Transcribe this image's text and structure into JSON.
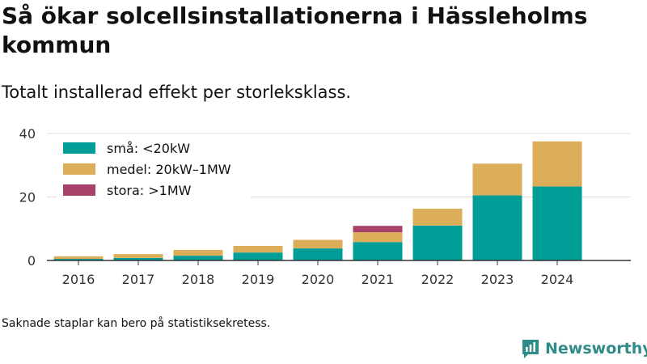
{
  "header": {
    "title": "Så ökar solcellsinstallationerna i Hässleholms kommun",
    "subtitle": "Totalt installerad effekt per storleksklass."
  },
  "footer": {
    "note": "Saknade staplar kan bero på statistiksekretess.",
    "brand": "Newsworthy"
  },
  "colors": {
    "small": "#009e96",
    "medium": "#dcae5a",
    "large": "#a8426b",
    "brand": "#2e8b87"
  },
  "chart_data": {
    "type": "bar",
    "stacked": true,
    "title": "Så ökar solcellsinstallationerna i Hässleholms kommun",
    "subtitle": "Totalt installerad effekt per storleksklass.",
    "xlabel": "",
    "ylabel": "",
    "categories": [
      "2016",
      "2017",
      "2018",
      "2019",
      "2020",
      "2021",
      "2022",
      "2023",
      "2024"
    ],
    "series": [
      {
        "name": "små: <20kW",
        "color": "#009e96",
        "values": [
          0.5,
          0.8,
          1.5,
          2.5,
          3.8,
          5.8,
          11.0,
          20.5,
          23.3
        ]
      },
      {
        "name": "medel: 20kW–1MW",
        "color": "#dcae5a",
        "values": [
          0.8,
          1.2,
          1.8,
          2.1,
          2.7,
          3.1,
          5.3,
          10.0,
          14.2
        ]
      },
      {
        "name": "stora: >1MW",
        "color": "#a8426b",
        "values": [
          0,
          0,
          0,
          0,
          0,
          2.0,
          0,
          0,
          0
        ]
      }
    ],
    "ylim": [
      0,
      40
    ],
    "yticks": [
      0,
      20,
      40
    ],
    "grid": true,
    "legend_position": "top-left"
  }
}
